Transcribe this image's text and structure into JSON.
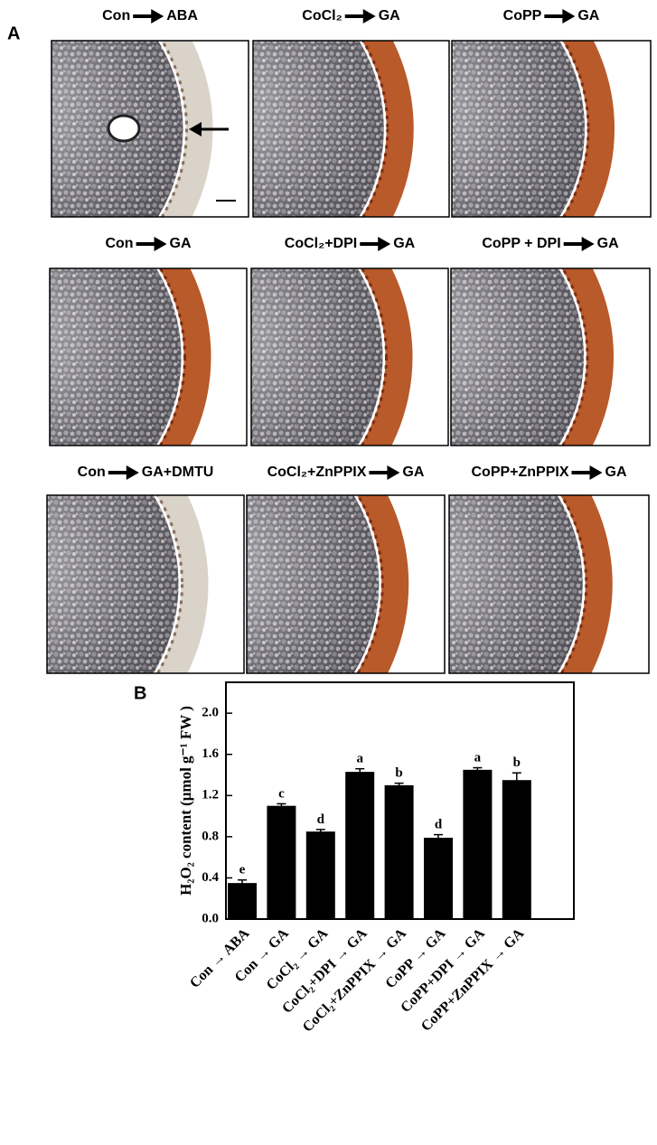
{
  "panel_a": {
    "label": "A",
    "panels": [
      {
        "left": "Con",
        "right": "ABA"
      },
      {
        "left": "CoCl₂",
        "right": "GA"
      },
      {
        "left": "CoPP",
        "right": "GA"
      },
      {
        "left": "Con",
        "right": "GA"
      },
      {
        "left": "CoCl₂+DPI",
        "right": "GA"
      },
      {
        "left": "CoPP + DPI",
        "right": "GA"
      },
      {
        "left": "Con",
        "right": "GA+DMTU"
      },
      {
        "left": "CoCl₂+ZnPPIX",
        "right": "GA"
      },
      {
        "left": "CoPP+ZnPPIX",
        "right": "GA"
      }
    ]
  },
  "chart_data": {
    "type": "bar",
    "panel_label": "B",
    "y_label": "H₂O₂ content (μmol g⁻¹ FW )",
    "categories": [
      "Con → ABA",
      "Con → GA",
      "CoCl₂ → GA",
      "CoCl₂+DPI → GA",
      "CoCl₂+ZnPPIX → GA",
      "CoPP → GA",
      "CoPP+DPI → GA",
      "CoPP+ZnPPIX → GA"
    ],
    "values": [
      0.35,
      1.1,
      0.85,
      1.43,
      1.3,
      0.79,
      1.45,
      1.35
    ],
    "errors": [
      0.03,
      0.02,
      0.02,
      0.03,
      0.02,
      0.03,
      0.02,
      0.07
    ],
    "annotations": [
      "e",
      "c",
      "d",
      "a",
      "b",
      "d",
      "a",
      "b"
    ],
    "color": "#000000",
    "ylim": [
      0,
      2.3
    ],
    "yticks": [
      {
        "value": 0,
        "label": "0.0"
      },
      0.4,
      0.8,
      1.2,
      1.6,
      {
        "value": 2,
        "label": "2.0"
      }
    ]
  }
}
